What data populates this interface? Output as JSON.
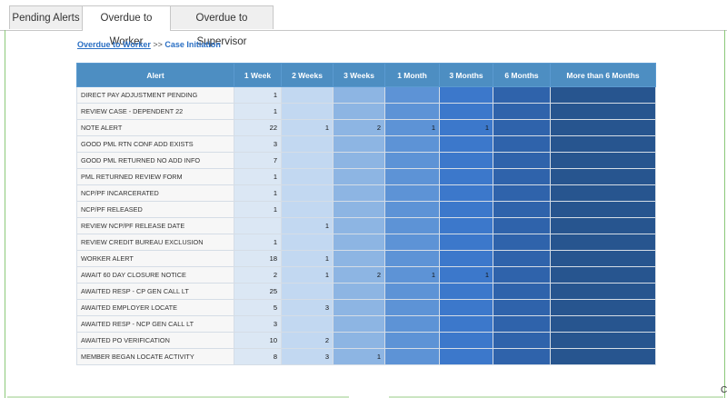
{
  "tabs": [
    {
      "label": "Pending Alerts",
      "active": false
    },
    {
      "label": "Overdue to Worker",
      "active": true
    },
    {
      "label": "Overdue to Supervisor",
      "active": false
    }
  ],
  "breadcrumb": {
    "link": "Overdue to Worker",
    "separator": ">>",
    "current": "Case Initiation"
  },
  "table": {
    "headers": [
      "Alert",
      "1 Week",
      "2 Weeks",
      "3 Weeks",
      "1 Month",
      "3 Months",
      "6 Months",
      "More than 6 Months"
    ],
    "rows": [
      [
        "DIRECT PAY ADJUSTMENT PENDING",
        "1",
        "",
        "",
        "",
        "",
        "",
        ""
      ],
      [
        "REVIEW CASE - DEPENDENT 22",
        "1",
        "",
        "",
        "",
        "",
        "",
        ""
      ],
      [
        "NOTE ALERT",
        "22",
        "1",
        "2",
        "1",
        "1",
        "",
        ""
      ],
      [
        "GOOD PML RTN CONF ADD EXISTS",
        "3",
        "",
        "",
        "",
        "",
        "",
        ""
      ],
      [
        "GOOD PML RETURNED NO ADD INFO",
        "7",
        "",
        "",
        "",
        "",
        "",
        ""
      ],
      [
        "PML RETURNED REVIEW FORM",
        "1",
        "",
        "",
        "",
        "",
        "",
        ""
      ],
      [
        "NCP/PF INCARCERATED",
        "1",
        "",
        "",
        "",
        "",
        "",
        ""
      ],
      [
        "NCP/PF RELEASED",
        "1",
        "",
        "",
        "",
        "",
        "",
        ""
      ],
      [
        "REVIEW NCP/PF RELEASE DATE",
        "",
        "1",
        "",
        "",
        "",
        "",
        ""
      ],
      [
        "REVIEW CREDIT BUREAU EXCLUSION",
        "1",
        "",
        "",
        "",
        "",
        "",
        ""
      ],
      [
        "WORKER ALERT",
        "18",
        "1",
        "",
        "",
        "",
        "",
        ""
      ],
      [
        "AWAIT 60 DAY CLOSURE NOTICE",
        "2",
        "1",
        "2",
        "1",
        "1",
        "",
        ""
      ],
      [
        "AWAITED RESP - CP GEN CALL LT",
        "25",
        "",
        "",
        "",
        "",
        "",
        ""
      ],
      [
        "AWAITED EMPLOYER LOCATE",
        "5",
        "3",
        "",
        "",
        "",
        "",
        ""
      ],
      [
        "AWAITED RESP - NCP GEN CALL LT",
        "3",
        "",
        "",
        "",
        "",
        "",
        ""
      ],
      [
        "AWAITED PO VERIFICATION",
        "10",
        "2",
        "",
        "",
        "",
        "",
        ""
      ],
      [
        "MEMBER BEGAN LOCATE ACTIVITY",
        "8",
        "3",
        "1",
        "",
        "",
        "",
        ""
      ]
    ]
  },
  "edge_text": "C"
}
